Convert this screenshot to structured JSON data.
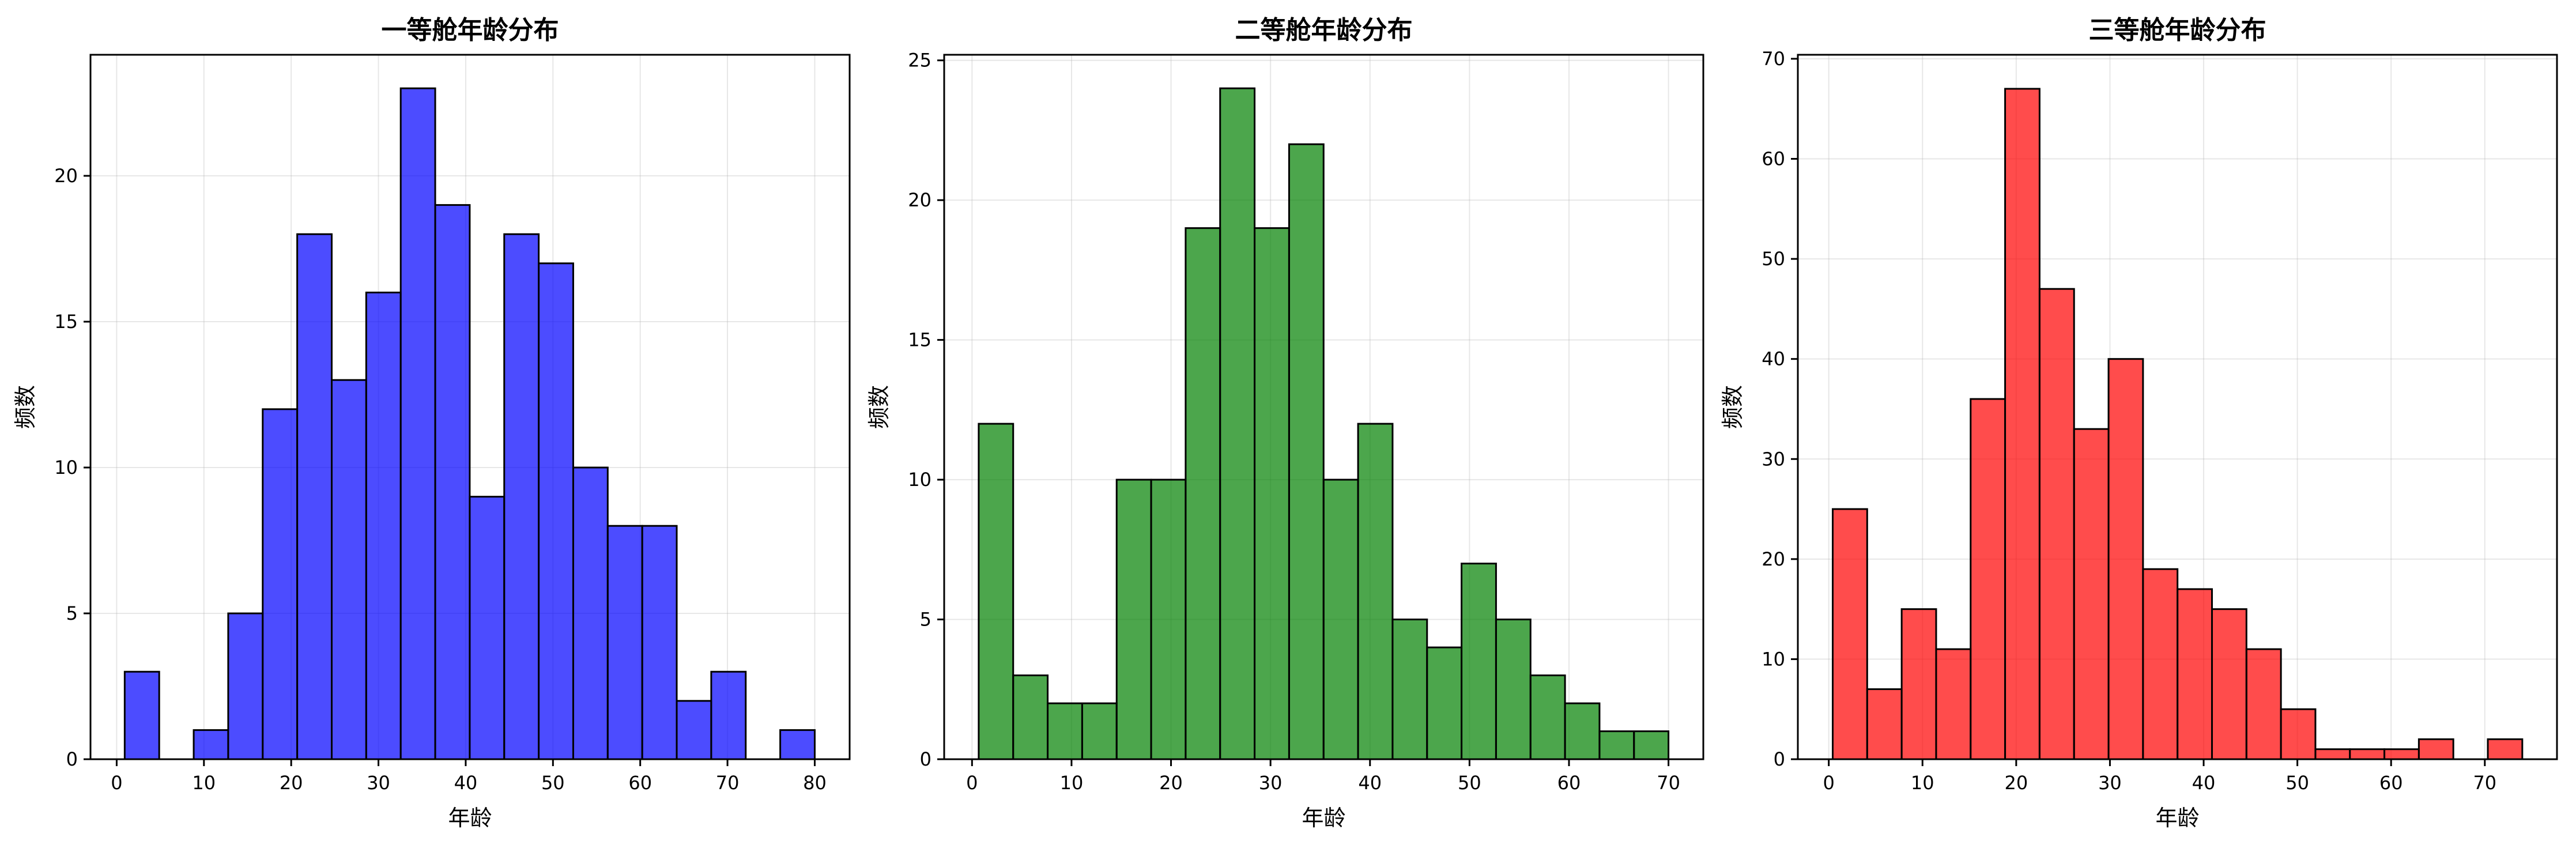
{
  "chart_data": [
    {
      "type": "bar",
      "title": "一等舱年龄分布",
      "xlabel": "年龄",
      "ylabel": "频数",
      "color": "#0000ff",
      "bin_start": 0.92,
      "bin_end": 80,
      "bin_count": 20,
      "values": [
        3,
        0,
        1,
        5,
        12,
        18,
        13,
        16,
        23,
        19,
        9,
        18,
        17,
        10,
        8,
        8,
        2,
        3,
        0,
        1
      ],
      "xlim": [
        -3.0,
        84.0
      ],
      "ylim": [
        0,
        24.15
      ],
      "xticks": [
        0,
        10,
        20,
        30,
        40,
        50,
        60,
        70,
        80
      ],
      "yticks": [
        0,
        5,
        10,
        15,
        20
      ],
      "grid": true
    },
    {
      "type": "bar",
      "title": "二等舱年龄分布",
      "xlabel": "年龄",
      "ylabel": "频数",
      "color": "#008000",
      "bin_start": 0.67,
      "bin_end": 70,
      "bin_count": 20,
      "values": [
        12,
        3,
        2,
        2,
        10,
        10,
        19,
        24,
        19,
        22,
        10,
        12,
        5,
        4,
        7,
        5,
        3,
        2,
        1,
        1
      ],
      "xlim": [
        -2.8,
        73.5
      ],
      "ylim": [
        0,
        25.2
      ],
      "xticks": [
        0,
        10,
        20,
        30,
        40,
        50,
        60,
        70
      ],
      "yticks": [
        0,
        5,
        10,
        15,
        20,
        25
      ],
      "grid": true
    },
    {
      "type": "bar",
      "title": "三等舱年龄分布",
      "xlabel": "年龄",
      "ylabel": "频数",
      "color": "#ff0000",
      "bin_start": 0.42,
      "bin_end": 74,
      "bin_count": 20,
      "values": [
        25,
        7,
        15,
        11,
        36,
        67,
        47,
        33,
        40,
        19,
        17,
        15,
        11,
        5,
        1,
        1,
        1,
        2,
        0,
        2
      ],
      "xlim": [
        -3.3,
        77.7
      ],
      "ylim": [
        0,
        70.4
      ],
      "xticks": [
        0,
        10,
        20,
        30,
        40,
        50,
        60,
        70
      ],
      "yticks": [
        0,
        10,
        20,
        30,
        40,
        50,
        60,
        70
      ],
      "grid": true
    }
  ]
}
